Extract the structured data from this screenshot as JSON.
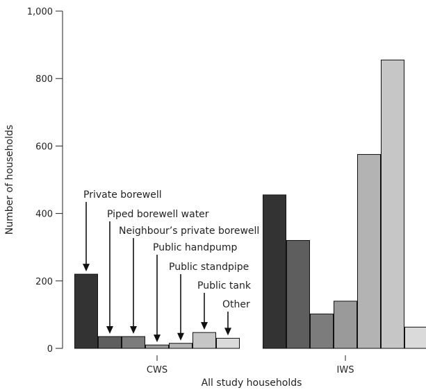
{
  "chart_data": {
    "type": "bar",
    "xlabel": "All study households",
    "ylabel": "Number of households",
    "ylim": [
      0,
      1000
    ],
    "yticks": [
      0,
      200,
      400,
      600,
      800,
      1000
    ],
    "ytick_labels": [
      "0",
      "200",
      "400",
      "600",
      "800",
      "1,000"
    ],
    "grid": false,
    "legend": "none (categories annotated with arrows on the CWS group)",
    "categories": [
      "CWS",
      "IWS"
    ],
    "series": [
      {
        "name": "Private borewell",
        "values": [
          220,
          455
        ],
        "color": "#333333"
      },
      {
        "name": "Piped borewell water",
        "values": [
          35,
          320
        ],
        "color": "#5e5e5e"
      },
      {
        "name": "Neighbour’s private borewell",
        "values": [
          35,
          102
        ],
        "color": "#7c7c7c"
      },
      {
        "name": "Public handpump",
        "values": [
          10,
          140
        ],
        "color": "#9a9a9a"
      },
      {
        "name": "Public standpipe",
        "values": [
          15,
          575
        ],
        "color": "#b3b3b3"
      },
      {
        "name": "Public tank",
        "values": [
          47,
          855
        ],
        "color": "#c6c6c6"
      },
      {
        "name": "Other",
        "values": [
          30,
          63
        ],
        "color": "#dadada"
      }
    ]
  }
}
